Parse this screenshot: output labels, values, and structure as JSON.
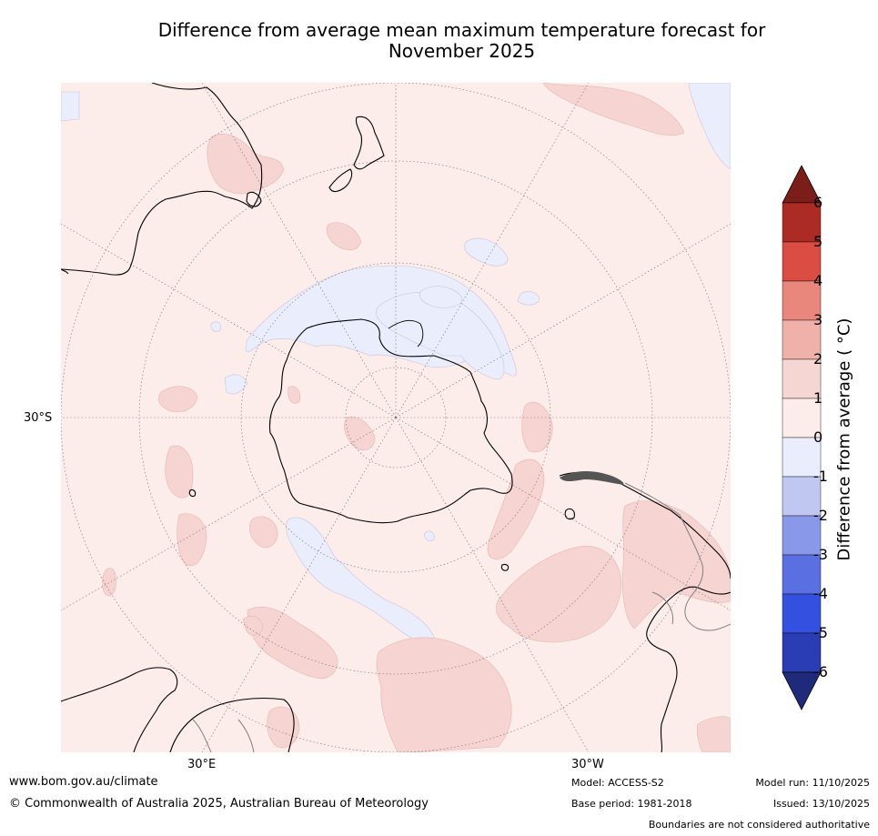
{
  "title_line1": "Difference from average mean maximum temperature forecast for",
  "title_line2": "November 2025",
  "map": {
    "lat_label": "30°S",
    "lon_label_left": "30°E",
    "lon_label_right": "30°W"
  },
  "colorbar": {
    "title": "Difference from average ( °C)",
    "ticks": [
      "6",
      "5",
      "4",
      "3",
      "2",
      "1",
      "0",
      "-1",
      "-2",
      "-3",
      "-4",
      "-5",
      "-6"
    ],
    "colors_top_to_bottom": [
      "#7b1e1a",
      "#ad2b25",
      "#db4c42",
      "#e9877c",
      "#f0b1aa",
      "#f6d6d3",
      "#fcecea",
      "#eaeefc",
      "#c0c7f1",
      "#8a98ea",
      "#5a70e2",
      "#3350e0",
      "#2a3db4",
      "#1f2b7a"
    ],
    "colors": {
      "warm_light": "#fcecea",
      "warm_medium": "#f5d4d2",
      "cool_light": "#eaeefc",
      "land_outline": "#000000"
    }
  },
  "footer": {
    "website": "www.bom.gov.au/climate",
    "copyright": "© Commonwealth of Australia 2025, Australian Bureau of Meteorology",
    "model": "Model: ACCESS-S2",
    "base_period": "Base period: 1981-2018",
    "model_run": "Model run: 11/10/2025",
    "issued": "Issued: 13/10/2025",
    "disclaimer": "Boundaries are not considered authoritative"
  }
}
